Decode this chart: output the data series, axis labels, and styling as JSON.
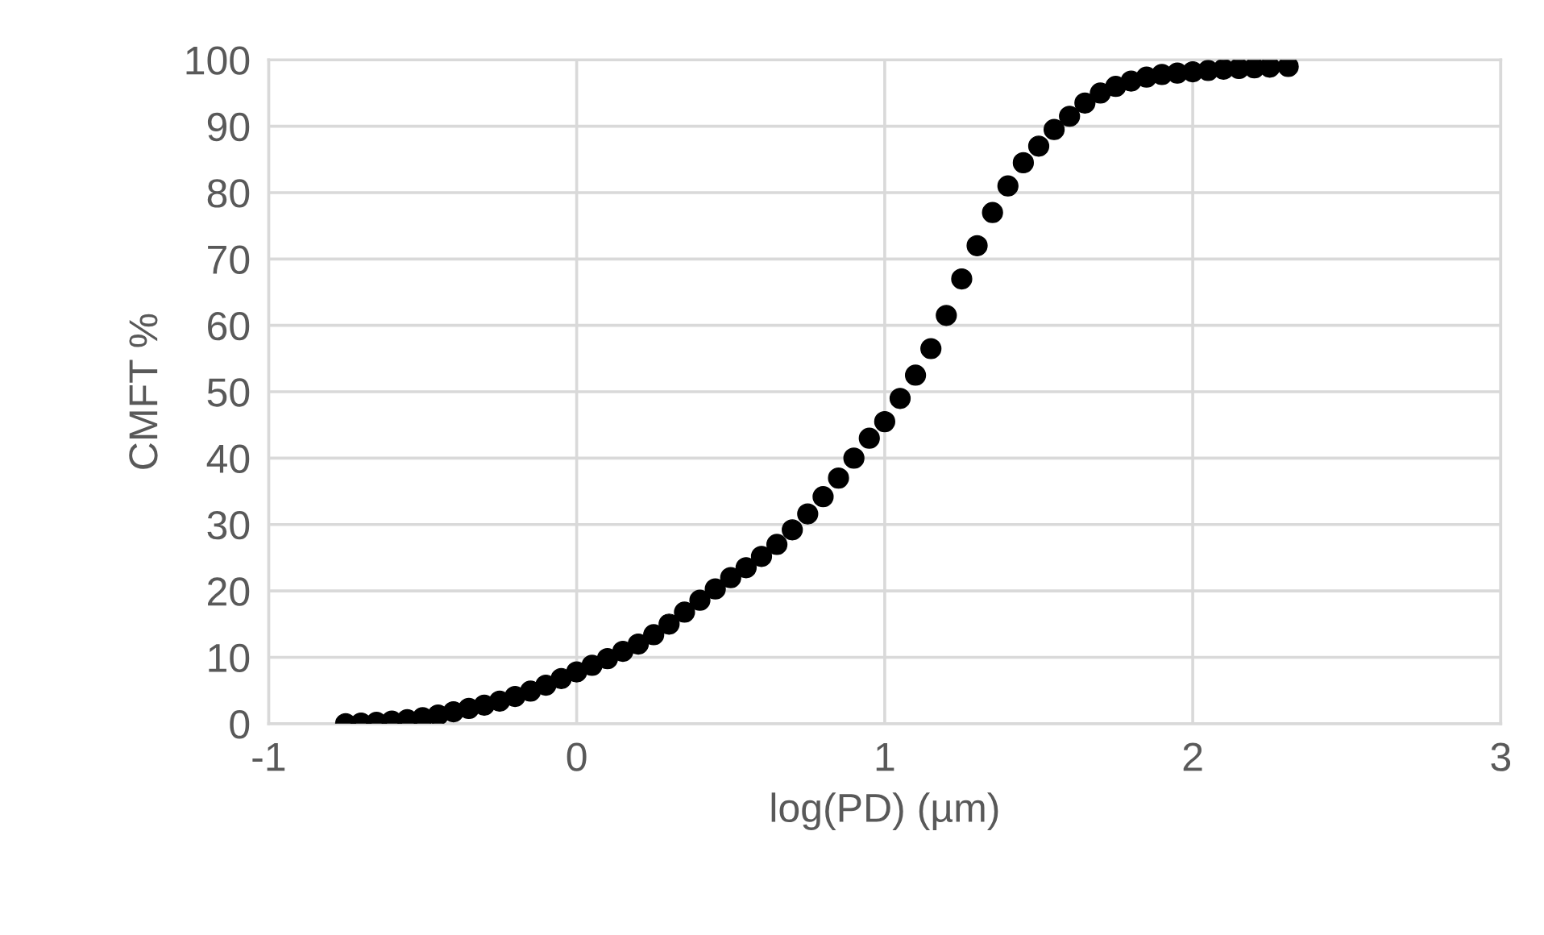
{
  "chart_data": {
    "type": "scatter",
    "xlabel": "log(PD) (µm)",
    "ylabel": "CMFT %",
    "xlim": [
      -1,
      3
    ],
    "xticks": [
      -1,
      0,
      1,
      2,
      3
    ],
    "ylim": [
      0,
      100
    ],
    "yticks": [
      0,
      10,
      20,
      30,
      40,
      50,
      60,
      70,
      80,
      90,
      100
    ],
    "grid": true,
    "marker": "circle",
    "series": [
      {
        "color": "#000000",
        "x": [
          -0.75,
          -0.7,
          -0.65,
          -0.6,
          -0.55,
          -0.5,
          -0.45,
          -0.4,
          -0.35,
          -0.3,
          -0.25,
          -0.2,
          -0.15,
          -0.1,
          -0.05,
          0.0,
          0.05,
          0.1,
          0.15,
          0.2,
          0.25,
          0.3,
          0.35,
          0.4,
          0.45,
          0.5,
          0.55,
          0.6,
          0.65,
          0.7,
          0.75,
          0.8,
          0.85,
          0.9,
          0.95,
          1.0,
          1.05,
          1.1,
          1.15,
          1.2,
          1.25,
          1.3,
          1.35,
          1.4,
          1.45,
          1.5,
          1.55,
          1.6,
          1.65,
          1.7,
          1.75,
          1.8,
          1.85,
          1.9,
          1.95,
          2.0,
          2.05,
          2.1,
          2.15,
          2.2,
          2.25,
          2.31
        ],
        "values": [
          0,
          0.1,
          0.2,
          0.4,
          0.6,
          0.9,
          1.3,
          1.8,
          2.3,
          2.8,
          3.4,
          4.1,
          4.9,
          5.8,
          6.8,
          7.8,
          8.8,
          9.8,
          10.9,
          12.0,
          13.4,
          15.0,
          16.8,
          18.6,
          20.3,
          22.0,
          23.5,
          25.2,
          27.0,
          29.2,
          31.6,
          34.2,
          37.0,
          40.0,
          43.0,
          45.5,
          49.0,
          52.5,
          56.5,
          61.5,
          67.0,
          72.0,
          77.0,
          81.0,
          84.5,
          87.0,
          89.5,
          91.5,
          93.5,
          95.0,
          96.0,
          96.8,
          97.4,
          97.8,
          98.0,
          98.2,
          98.4,
          98.6,
          98.7,
          98.8,
          98.9,
          99.0
        ]
      }
    ]
  }
}
